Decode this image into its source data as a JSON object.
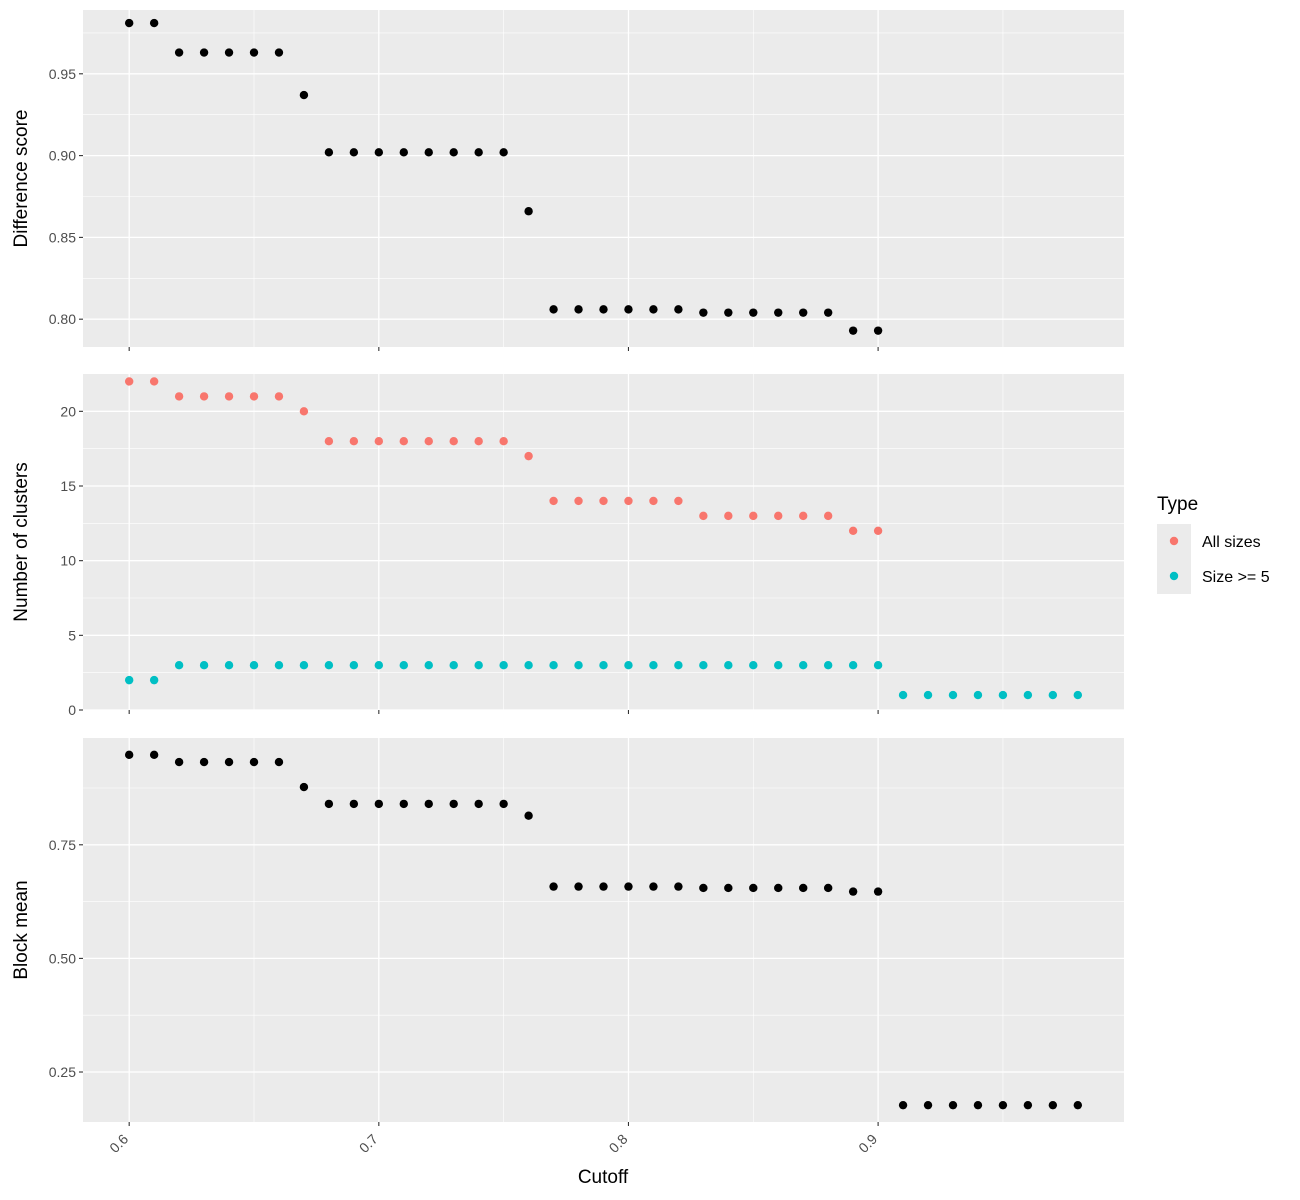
{
  "chart_data": {
    "type": "scatter",
    "xlabel": "Cutoff",
    "x_ticks": [
      0.6,
      0.7,
      0.8,
      0.9
    ],
    "x_tick_labels": [
      "0.6",
      "0.7",
      "0.8",
      "0.9"
    ],
    "xlim": [
      0.5815,
      0.9985
    ],
    "grid": true,
    "legend": {
      "title": "Type",
      "position": "right",
      "entries": [
        {
          "label": "All sizes",
          "color": "#F8766D"
        },
        {
          "label": "Size >= 5",
          "color": "#00BFC4"
        }
      ]
    },
    "panels": [
      {
        "ylabel": "Difference score",
        "ylim": [
          0.783,
          0.989
        ],
        "y_ticks": [
          0.8,
          0.85,
          0.9,
          0.95
        ],
        "y_tick_labels": [
          "0.80",
          "0.85",
          "0.90",
          "0.95"
        ],
        "series": [
          {
            "color": "#000000",
            "x": [
              0.6,
              0.61,
              0.62,
              0.63,
              0.64,
              0.65,
              0.66,
              0.67,
              0.68,
              0.69,
              0.7,
              0.71,
              0.72,
              0.73,
              0.74,
              0.75,
              0.76,
              0.77,
              0.78,
              0.79,
              0.8,
              0.81,
              0.82,
              0.83,
              0.84,
              0.85,
              0.86,
              0.87,
              0.88,
              0.89,
              0.9
            ],
            "y": [
              0.981,
              0.981,
              0.963,
              0.963,
              0.963,
              0.963,
              0.963,
              0.937,
              0.902,
              0.902,
              0.902,
              0.902,
              0.902,
              0.902,
              0.902,
              0.902,
              0.866,
              0.806,
              0.806,
              0.806,
              0.806,
              0.806,
              0.806,
              0.804,
              0.804,
              0.804,
              0.804,
              0.804,
              0.804,
              0.793,
              0.793
            ]
          }
        ]
      },
      {
        "ylabel": "Number of clusters",
        "ylim": [
          0,
          22.5
        ],
        "y_ticks": [
          0,
          5,
          10,
          15,
          20
        ],
        "y_tick_labels": [
          "0",
          "5",
          "10",
          "15",
          "20"
        ],
        "series": [
          {
            "name": "All sizes",
            "color": "#F8766D",
            "x": [
              0.6,
              0.61,
              0.62,
              0.63,
              0.64,
              0.65,
              0.66,
              0.67,
              0.68,
              0.69,
              0.7,
              0.71,
              0.72,
              0.73,
              0.74,
              0.75,
              0.76,
              0.77,
              0.78,
              0.79,
              0.8,
              0.81,
              0.82,
              0.83,
              0.84,
              0.85,
              0.86,
              0.87,
              0.88,
              0.89,
              0.9
            ],
            "y": [
              22,
              22,
              21,
              21,
              21,
              21,
              21,
              20,
              18,
              18,
              18,
              18,
              18,
              18,
              18,
              18,
              17,
              14,
              14,
              14,
              14,
              14,
              14,
              13,
              13,
              13,
              13,
              13,
              13,
              12,
              12
            ]
          },
          {
            "name": "Size >= 5",
            "color": "#00BFC4",
            "x": [
              0.6,
              0.61,
              0.62,
              0.63,
              0.64,
              0.65,
              0.66,
              0.67,
              0.68,
              0.69,
              0.7,
              0.71,
              0.72,
              0.73,
              0.74,
              0.75,
              0.76,
              0.77,
              0.78,
              0.79,
              0.8,
              0.81,
              0.82,
              0.83,
              0.84,
              0.85,
              0.86,
              0.87,
              0.88,
              0.89,
              0.9,
              0.91,
              0.92,
              0.93,
              0.94,
              0.95,
              0.96,
              0.97,
              0.98
            ],
            "y": [
              2,
              2,
              3,
              3,
              3,
              3,
              3,
              3,
              3,
              3,
              3,
              3,
              3,
              3,
              3,
              3,
              3,
              3,
              3,
              3,
              3,
              3,
              3,
              3,
              3,
              3,
              3,
              3,
              3,
              3,
              3,
              1,
              1,
              1,
              1,
              1,
              1,
              1,
              1
            ]
          }
        ]
      },
      {
        "ylabel": "Block mean",
        "ylim": [
          0.14,
          0.985
        ],
        "y_ticks": [
          0.25,
          0.5,
          0.75
        ],
        "y_tick_labels": [
          "0.25",
          "0.50",
          "0.75"
        ],
        "series": [
          {
            "color": "#000000",
            "x": [
              0.6,
              0.61,
              0.62,
              0.63,
              0.64,
              0.65,
              0.66,
              0.67,
              0.68,
              0.69,
              0.7,
              0.71,
              0.72,
              0.73,
              0.74,
              0.75,
              0.76,
              0.77,
              0.78,
              0.79,
              0.8,
              0.81,
              0.82,
              0.83,
              0.84,
              0.85,
              0.86,
              0.87,
              0.88,
              0.89,
              0.9,
              0.91,
              0.92,
              0.93,
              0.94,
              0.95,
              0.96,
              0.97,
              0.98
            ],
            "y": [
              0.948,
              0.948,
              0.932,
              0.932,
              0.932,
              0.932,
              0.932,
              0.877,
              0.84,
              0.84,
              0.84,
              0.84,
              0.84,
              0.84,
              0.84,
              0.84,
              0.814,
              0.658,
              0.658,
              0.658,
              0.658,
              0.658,
              0.658,
              0.655,
              0.655,
              0.655,
              0.655,
              0.655,
              0.655,
              0.647,
              0.647,
              0.177,
              0.177,
              0.177,
              0.177,
              0.177,
              0.177,
              0.177,
              0.177
            ]
          }
        ]
      }
    ]
  }
}
